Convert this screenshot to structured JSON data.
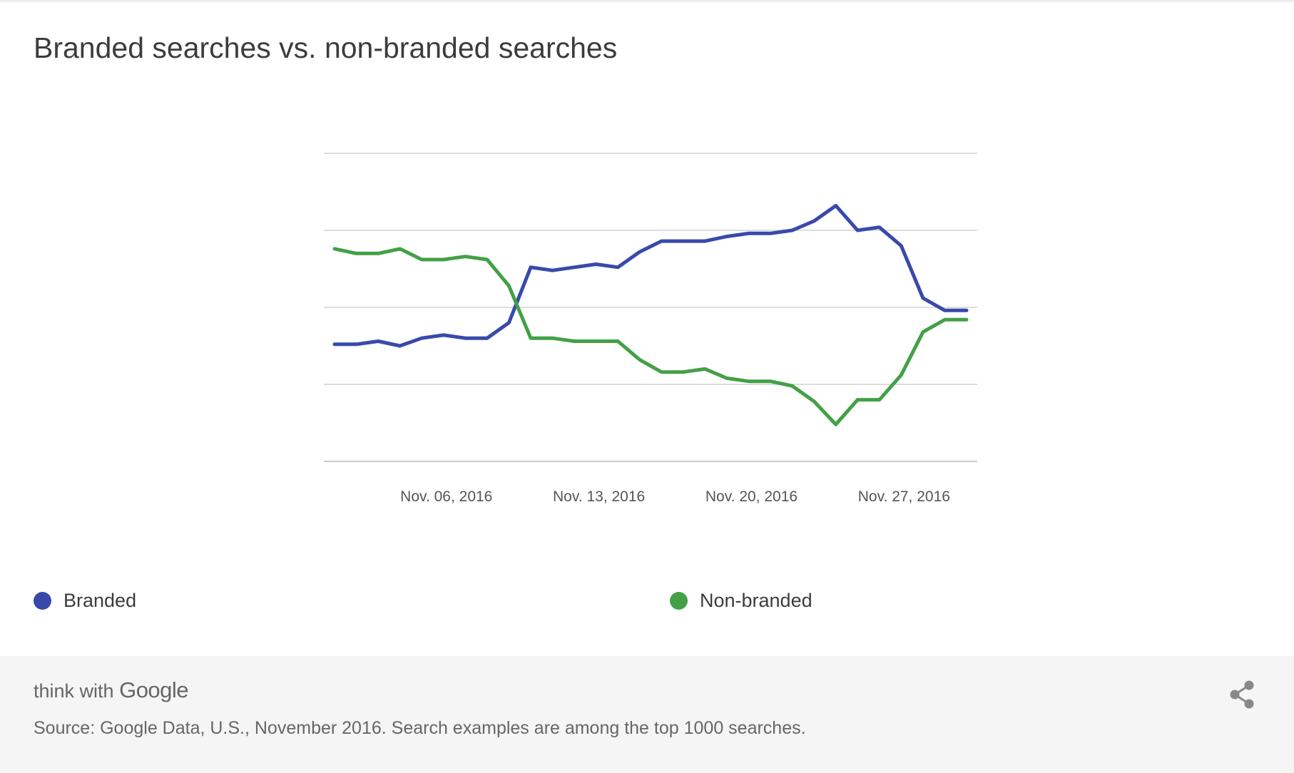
{
  "title": "Branded searches vs. non-branded searches",
  "legend": {
    "items": [
      {
        "label": "Branded",
        "color": "#3949ab"
      },
      {
        "label": "Non-branded",
        "color": "#43a047"
      }
    ]
  },
  "footer": {
    "brand_prefix": "think with",
    "brand_name": "Google",
    "source": "Source: Google Data, U.S., November 2016. Search examples are among the top 1000 searches.",
    "share_icon": "share-icon"
  },
  "chart_data": {
    "type": "line",
    "title": "Branded searches vs. non-branded searches",
    "xlabel": "",
    "ylabel": "",
    "x_tick_labels": [
      "Nov. 06, 2016",
      "Nov. 13, 2016",
      "Nov. 20, 2016",
      "Nov. 27, 2016"
    ],
    "x": [
      "2016-11-01",
      "2016-11-02",
      "2016-11-03",
      "2016-11-04",
      "2016-11-05",
      "2016-11-06",
      "2016-11-07",
      "2016-11-08",
      "2016-11-09",
      "2016-11-10",
      "2016-11-11",
      "2016-11-12",
      "2016-11-13",
      "2016-11-14",
      "2016-11-15",
      "2016-11-16",
      "2016-11-17",
      "2016-11-18",
      "2016-11-19",
      "2016-11-20",
      "2016-11-21",
      "2016-11-22",
      "2016-11-23",
      "2016-11-24",
      "2016-11-25",
      "2016-11-26",
      "2016-11-27",
      "2016-11-28",
      "2016-11-29",
      "2016-11-30"
    ],
    "ylim": [
      0,
      100
    ],
    "y_gridlines": [
      0,
      25,
      50,
      75,
      100
    ],
    "y_tick_labels_shown": false,
    "grid": true,
    "legend_position": "bottom",
    "series": [
      {
        "name": "Branded",
        "color": "#3949ab",
        "values": [
          38,
          38,
          39,
          37.5,
          40,
          41,
          40,
          40,
          45,
          63,
          62,
          63,
          64,
          63,
          68,
          71.5,
          71.5,
          71.5,
          73,
          74,
          74,
          75,
          78,
          83,
          75,
          76,
          70,
          53,
          49,
          49
        ]
      },
      {
        "name": "Non-branded",
        "color": "#43a047",
        "values": [
          69,
          67.5,
          67.5,
          69,
          65.5,
          65.5,
          66.5,
          65.5,
          57,
          40,
          40,
          39,
          39,
          39,
          33,
          29,
          29,
          30,
          27,
          26,
          26,
          24.5,
          19.5,
          12,
          20,
          20,
          28,
          42,
          46,
          46
        ]
      }
    ]
  }
}
